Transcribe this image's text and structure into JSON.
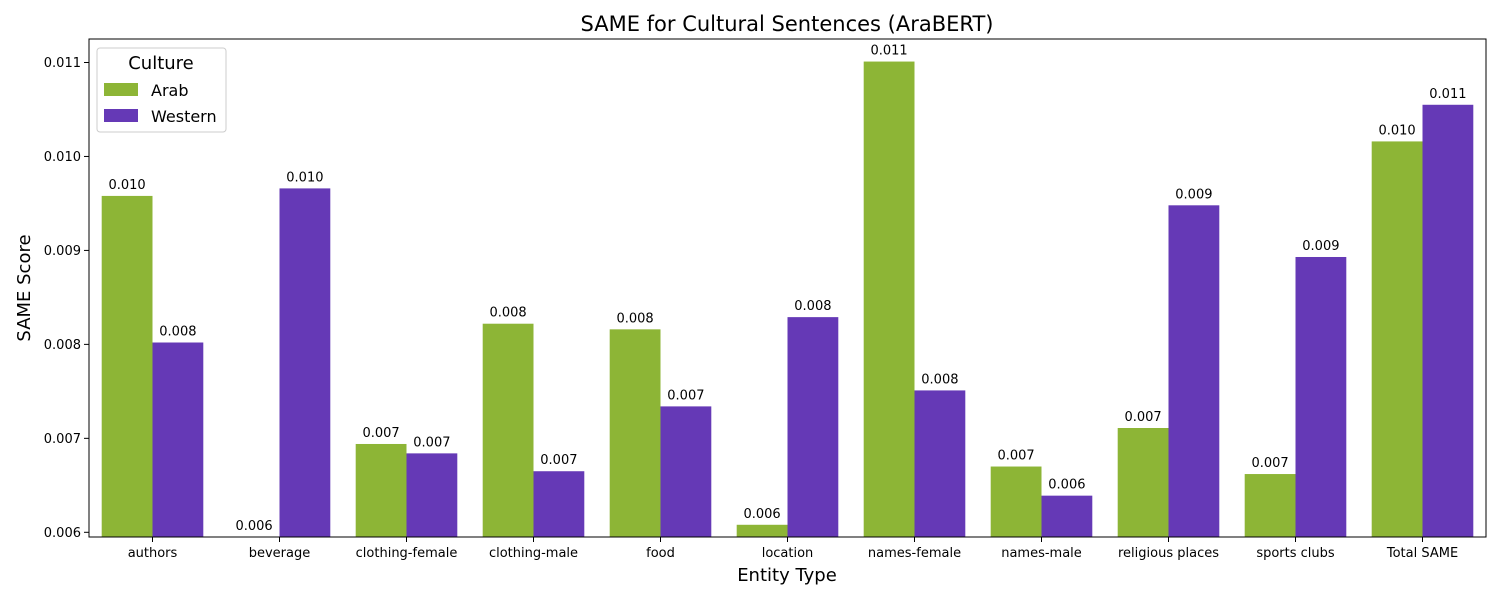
{
  "chart_data": {
    "type": "bar",
    "title": "SAME for Cultural Sentences (AraBERT)",
    "xlabel": "Entity Type",
    "ylabel": "SAME Score",
    "ylim": [
      0.00595,
      0.01125
    ],
    "yticks": [
      0.006,
      0.007,
      0.008,
      0.009,
      0.01,
      0.011
    ],
    "ytick_labels": [
      "0.006",
      "0.007",
      "0.008",
      "0.009",
      "0.010",
      "0.011"
    ],
    "grid": false,
    "legend": {
      "title": "Culture",
      "placement": "top-left"
    },
    "categories": [
      "authors",
      "beverage",
      "clothing-female",
      "clothing-male",
      "food",
      "location",
      "names-female",
      "names-male",
      "religious places",
      "sports clubs",
      "Total SAME"
    ],
    "series": [
      {
        "name": "Arab",
        "color": "#8db536",
        "values": [
          0.00958,
          0.00595,
          0.00694,
          0.00822,
          0.00816,
          0.00608,
          0.01101,
          0.0067,
          0.00711,
          0.00662,
          0.01016
        ],
        "labels": [
          "0.010",
          "0.006",
          "0.007",
          "0.008",
          "0.008",
          "0.006",
          "0.011",
          "0.007",
          "0.007",
          "0.007",
          "0.010"
        ]
      },
      {
        "name": "Western",
        "color": "#6539b6",
        "values": [
          0.00802,
          0.00966,
          0.00684,
          0.00665,
          0.00734,
          0.00829,
          0.00751,
          0.00639,
          0.00948,
          0.00893,
          0.01055
        ],
        "labels": [
          "0.008",
          "0.010",
          "0.007",
          "0.007",
          "0.007",
          "0.008",
          "0.008",
          "0.006",
          "0.009",
          "0.009",
          "0.011"
        ]
      }
    ]
  }
}
